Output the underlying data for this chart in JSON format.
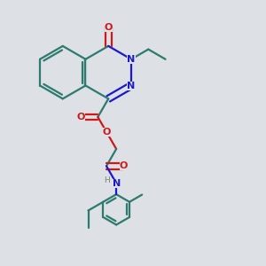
{
  "bg_color": "#dde0e4",
  "bond_color": "#2d7a6e",
  "N_color": "#1a1acc",
  "O_color": "#cc1a1a",
  "H_color": "#808080",
  "lw": 1.6,
  "figsize": [
    3.0,
    3.0
  ],
  "dpi": 100,
  "xlim": [
    0,
    10
  ],
  "ylim": [
    0,
    10
  ]
}
